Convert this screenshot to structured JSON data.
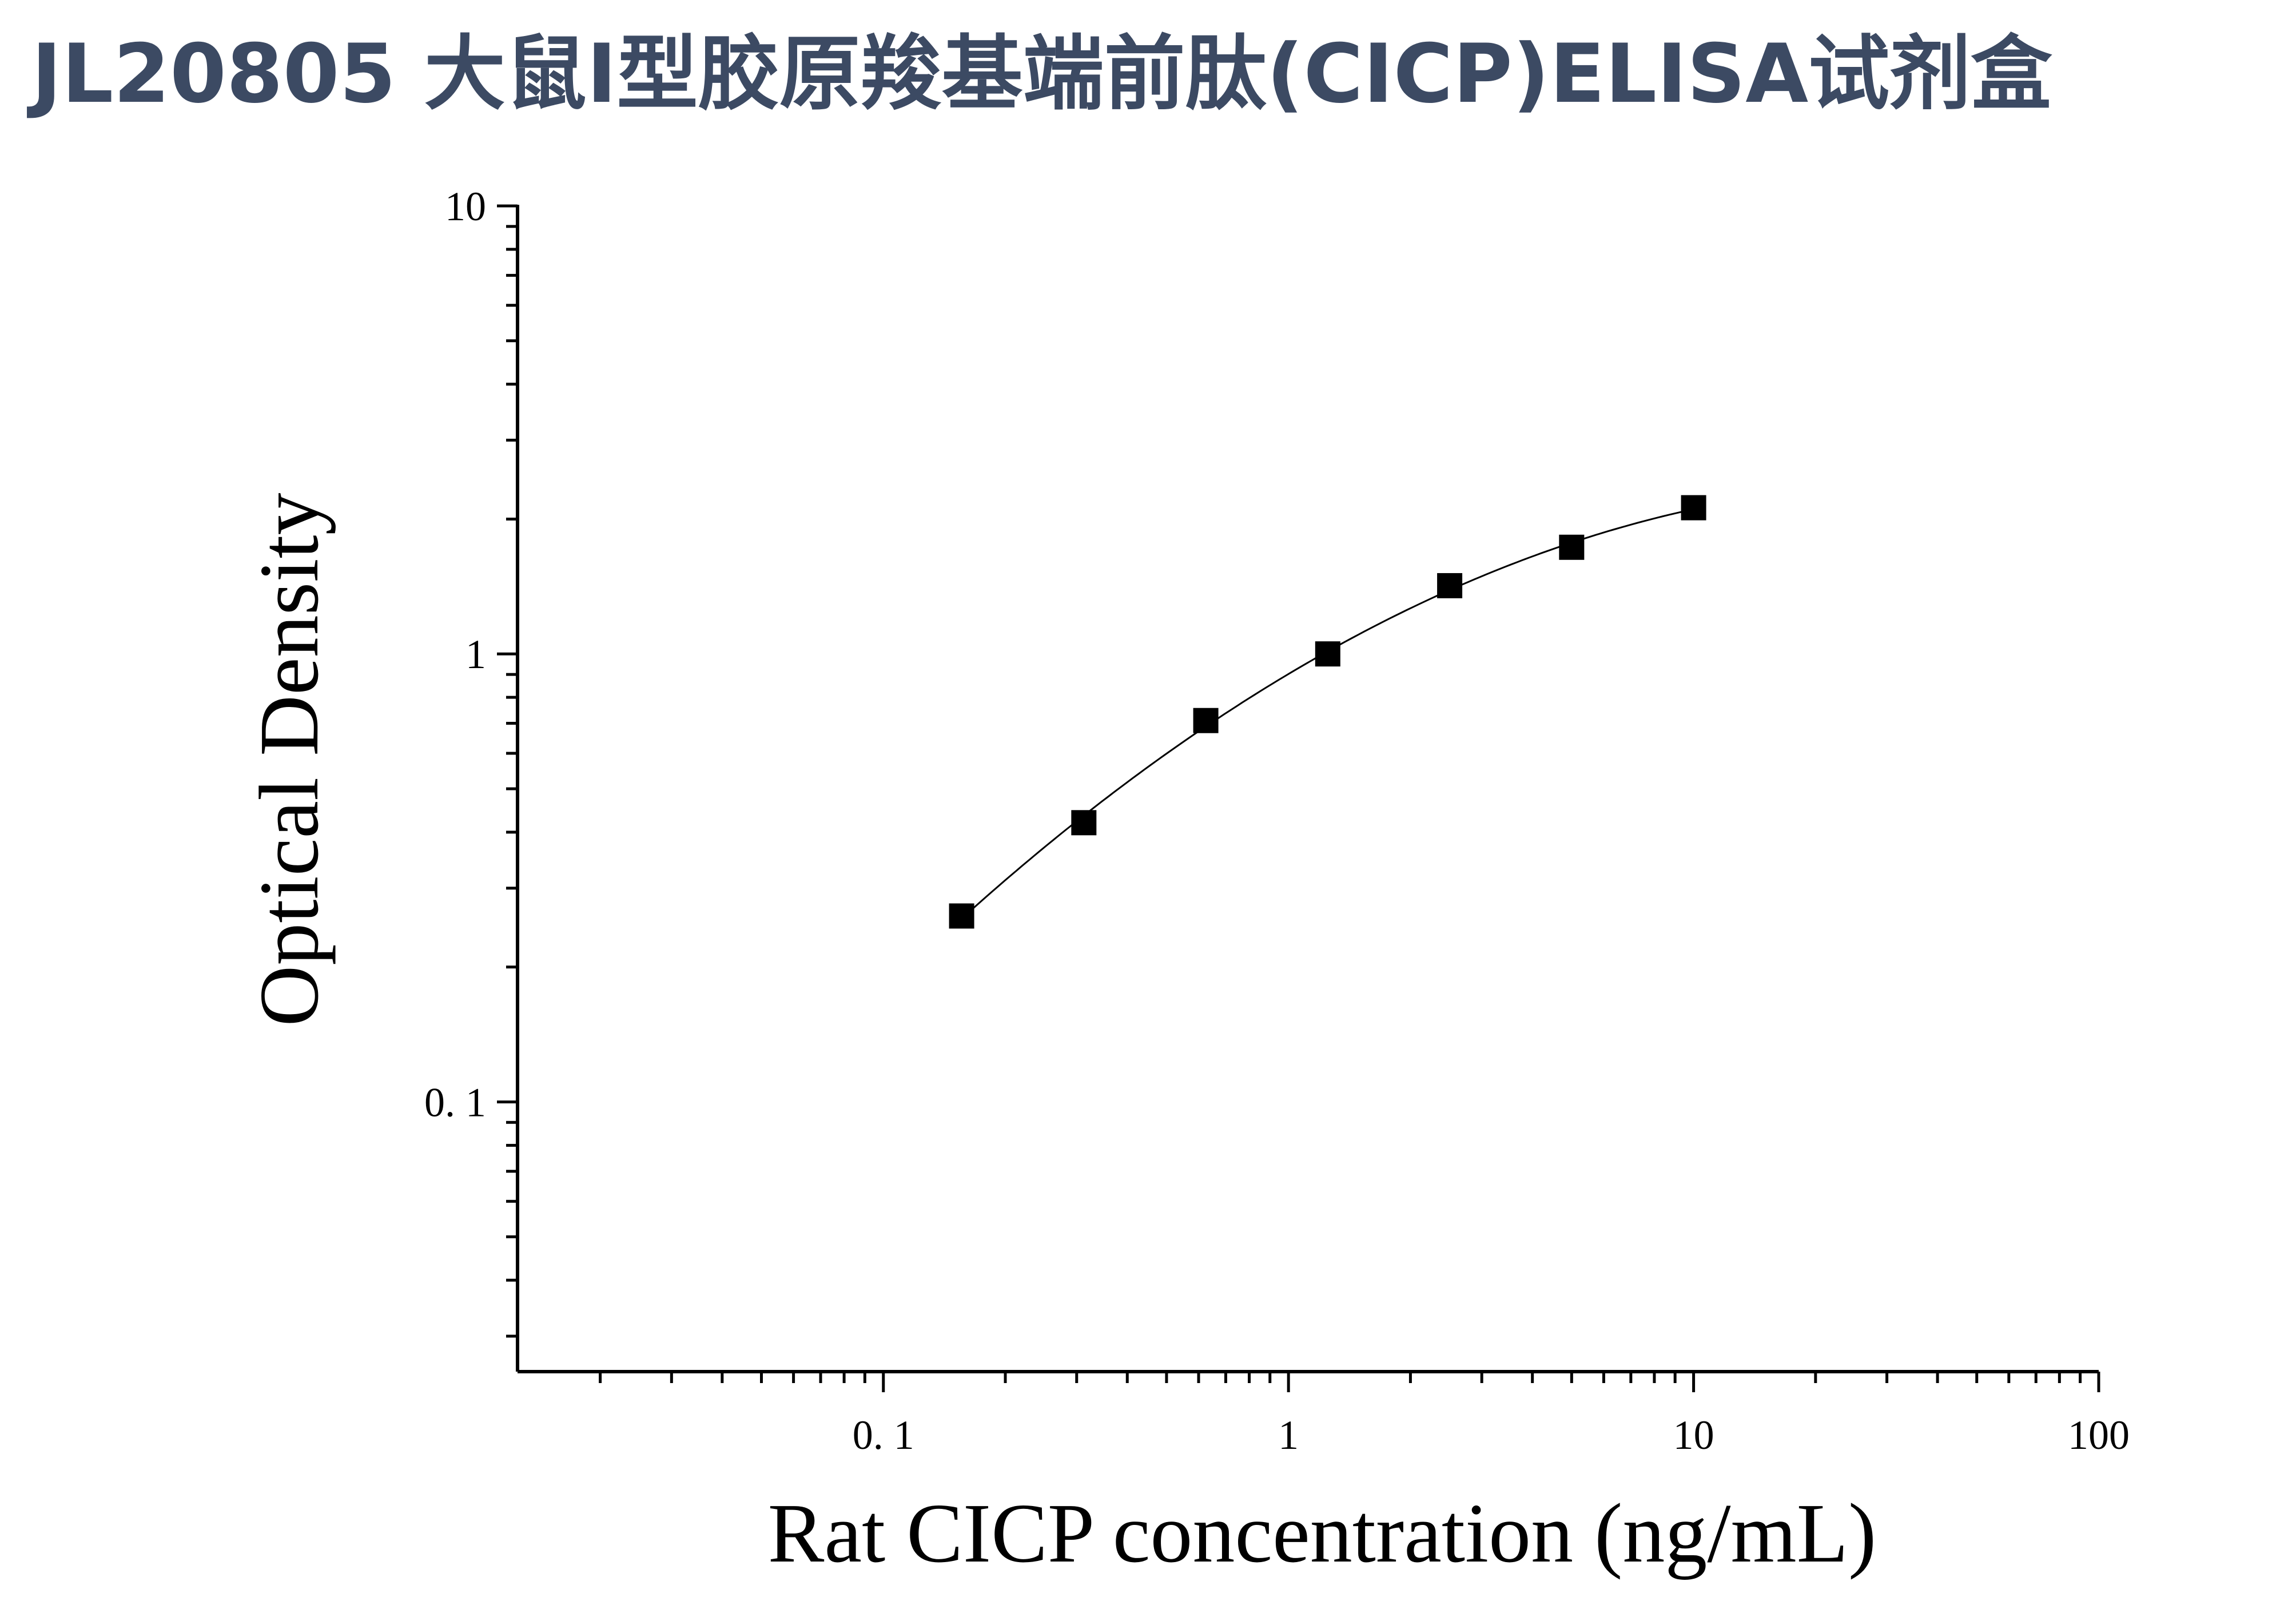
{
  "chart_data": {
    "type": "scatter",
    "title": "JL20805 大鼠I型胶原羧基端前肽(CICP)ELISA试剂盒",
    "xlabel": "Rat CICP concentration (ng/mL)",
    "ylabel": "Optical Density",
    "xscale": "log",
    "yscale": "log",
    "xlim": [
      0.0125,
      100
    ],
    "ylim": [
      0.025,
      10
    ],
    "x_tick_labels": [
      "0. 1",
      "1",
      "10",
      "100"
    ],
    "y_tick_labels": [
      "10",
      "1",
      "0. 1"
    ],
    "grid": false,
    "legend": "none",
    "series": [
      {
        "marker": "square",
        "line": "smooth-fit",
        "color": "#000000",
        "points": [
          {
            "x": 0.156,
            "y": 0.26
          },
          {
            "x": 0.3125,
            "y": 0.42
          },
          {
            "x": 0.625,
            "y": 0.71
          },
          {
            "x": 1.25,
            "y": 1.0
          },
          {
            "x": 2.5,
            "y": 1.42
          },
          {
            "x": 5,
            "y": 1.73
          },
          {
            "x": 10,
            "y": 2.12
          }
        ]
      }
    ],
    "colors": {
      "title": "#3c4a63",
      "axis": "#000000",
      "text": "#000000"
    }
  }
}
